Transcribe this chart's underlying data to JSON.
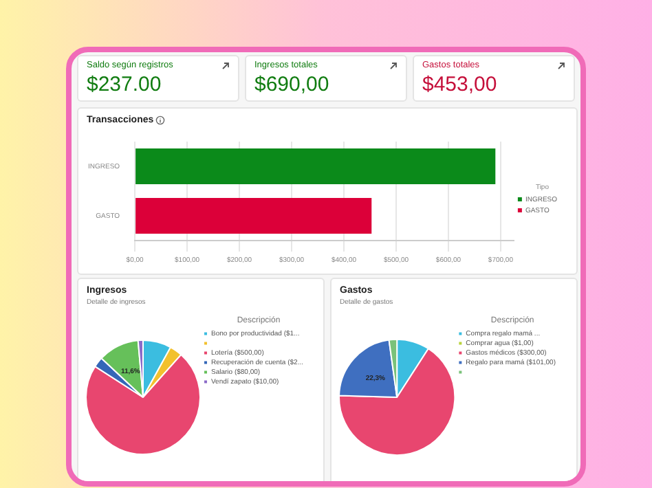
{
  "chart_data": [
    {
      "type": "other",
      "annotations": [
        "Saldo según registros",
        "$237.00",
        "Ingresos totales",
        "$690,00",
        "Gastos totales",
        "$453,00"
      ],
      "colors": [
        "#107c10",
        "#107c10",
        "#c50f3a"
      ]
    },
    {
      "type": "bar",
      "title": "Transacciones",
      "orientation": "horizontal",
      "categories": [
        "INGRESO",
        "GASTO"
      ],
      "series": [
        {
          "name": "INGRESO",
          "color": "#0b8a1a",
          "values": [
            690,
            null
          ]
        },
        {
          "name": "GASTO",
          "color": "#dc0039",
          "values": [
            null,
            453
          ]
        }
      ],
      "xlim": [
        0,
        725
      ],
      "xticks": [
        {
          "value": 0,
          "label": "$0,00"
        },
        {
          "value": 100,
          "label": "$100,00"
        },
        {
          "value": 200,
          "label": "$200,00"
        },
        {
          "value": 300,
          "label": "$300,00"
        },
        {
          "value": 400,
          "label": "$400,00"
        },
        {
          "value": 500,
          "label": "$500,00"
        },
        {
          "value": 600,
          "label": "$600,00"
        },
        {
          "value": 700,
          "label": "$700,00"
        }
      ],
      "grid": "x",
      "legend": "right",
      "legend_title": "Tipo"
    },
    {
      "type": "pie",
      "title": "Ingresos",
      "subtitle": "Detalle de ingresos",
      "legend_title": "Descripción",
      "legend": "right",
      "categories": [
        "Bono por productividad ($1...",
        null,
        "Lotería ($500,00)",
        "Recuperación de cuenta ($2...",
        "Salario ($80,00)",
        "Vendí zapato ($10,00)"
      ],
      "values": [
        8,
        3.6,
        72.5,
        2.9,
        11.6,
        1.4
      ],
      "colors": [
        "#3bbde0",
        "#f2c12e",
        "#e8466f",
        "#3467b8",
        "#66c05a",
        "#8b6bc8"
      ],
      "value_labels": [
        null,
        null,
        null,
        null,
        "11,6%",
        null
      ]
    },
    {
      "type": "pie",
      "title": "Gastos",
      "subtitle": "Detalle de gastos",
      "legend_title": "Descripción",
      "legend": "right",
      "categories": [
        "Compra regalo mamá ...",
        "Comprar agua ($1,00)",
        "Gastos médicos ($300,00)",
        "Regalo para mamá ($101,00)",
        null
      ],
      "values": [
        9.1,
        null,
        66.2,
        22.3,
        2.2
      ],
      "colors": [
        "#3bbde0",
        "#b9d33c",
        "#e8466f",
        "#3f6fc0",
        "#7ac27a"
      ],
      "value_labels": [
        null,
        null,
        null,
        "22,3%",
        null
      ]
    }
  ]
}
